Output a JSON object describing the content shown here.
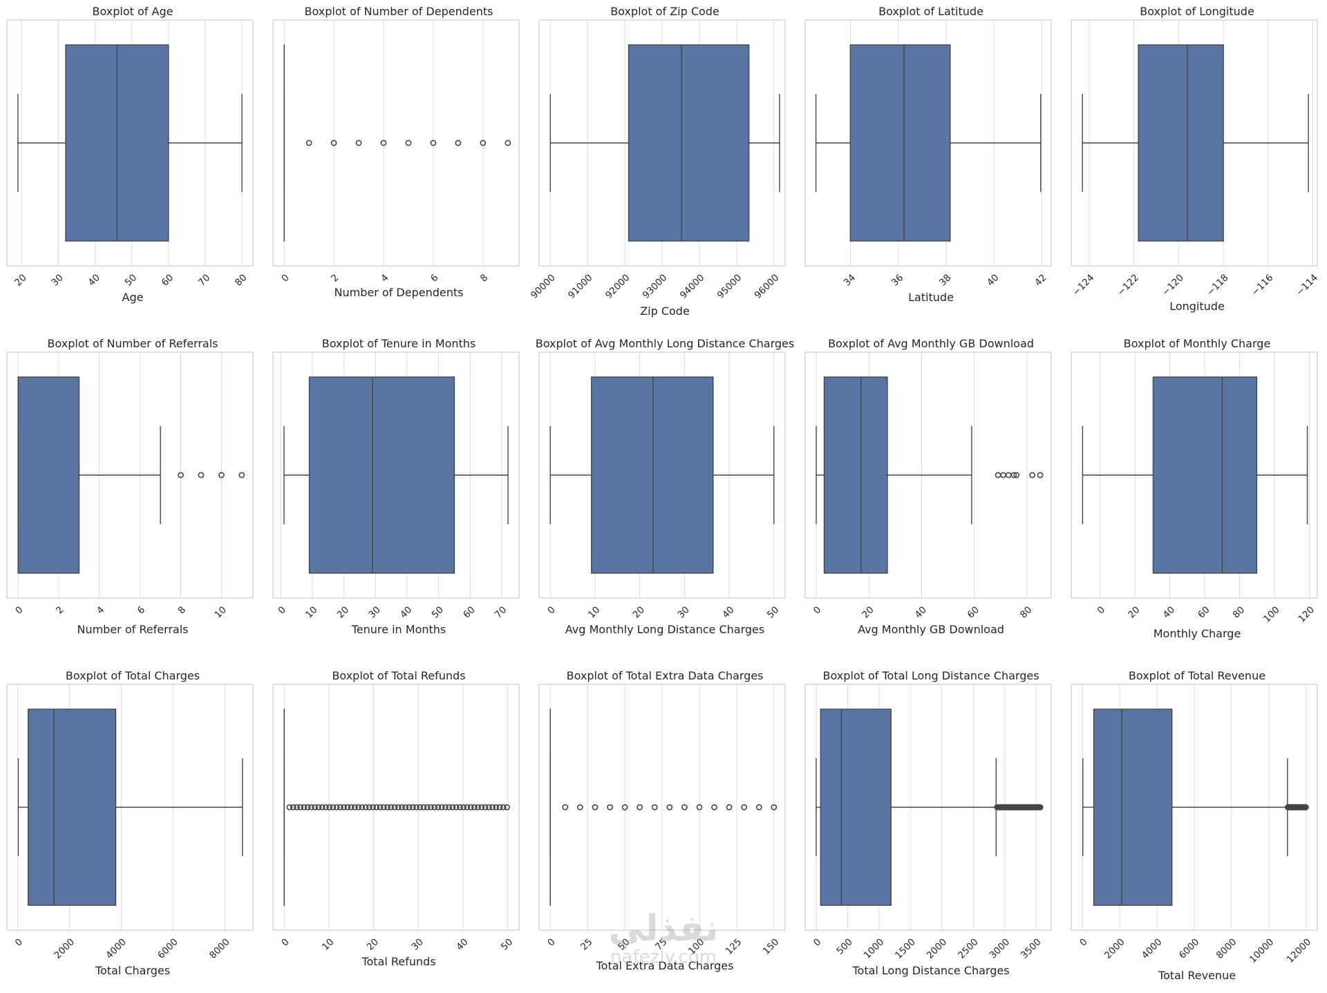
{
  "colors": {
    "box": "#5875a4",
    "line": "#444444",
    "grid": "#d9d9d9",
    "frame": "#cccccc",
    "text": "#262626"
  },
  "watermark": {
    "main": "نفذلي",
    "sub": "nafezly.com"
  },
  "chart_data": [
    {
      "type": "boxplot",
      "title": "Boxplot of Age",
      "xlabel": "Age",
      "xlim": [
        16,
        83
      ],
      "ticks": [
        20,
        30,
        40,
        50,
        60,
        70,
        80
      ],
      "tick_labels": [
        "20",
        "30",
        "40",
        "50",
        "60",
        "70",
        "80"
      ],
      "rotate": true,
      "whisker_low": 19,
      "q1": 32,
      "median": 46,
      "q3": 60,
      "whisker_high": 80,
      "outliers": []
    },
    {
      "type": "boxplot",
      "title": "Boxplot of Number of Dependents",
      "xlabel": "Number of Dependents",
      "xlim": [
        -0.45,
        9.45
      ],
      "ticks": [
        0,
        2,
        4,
        6,
        8
      ],
      "tick_labels": [
        "0",
        "2",
        "4",
        "6",
        "8"
      ],
      "rotate": true,
      "whisker_low": 0,
      "q1": 0,
      "median": 0,
      "q3": 0,
      "whisker_high": 0,
      "outliers": [
        1,
        2,
        3,
        4,
        5,
        6,
        7,
        8,
        9
      ]
    },
    {
      "type": "boxplot",
      "title": "Boxplot of Zip Code",
      "xlabel": "Zip Code",
      "xlim": [
        89700,
        96300
      ],
      "ticks": [
        90000,
        91000,
        92000,
        93000,
        94000,
        95000,
        96000
      ],
      "tick_labels": [
        "90000",
        "91000",
        "92000",
        "93000",
        "94000",
        "95000",
        "96000"
      ],
      "rotate": true,
      "whisker_low": 90001,
      "q1": 92101,
      "median": 93518,
      "q3": 95329,
      "whisker_high": 96150,
      "outliers": []
    },
    {
      "type": "boxplot",
      "title": "Boxplot of Latitude",
      "xlabel": "Latitude",
      "xlim": [
        32.1,
        42.4
      ],
      "ticks": [
        34,
        36,
        38,
        40,
        42
      ],
      "tick_labels": [
        "34",
        "36",
        "38",
        "40",
        "42"
      ],
      "rotate": true,
      "whisker_low": 32.55,
      "q1": 33.99,
      "median": 36.24,
      "q3": 38.17,
      "whisker_high": 41.96,
      "outliers": []
    },
    {
      "type": "boxplot",
      "title": "Boxplot of Longitude",
      "xlabel": "Longitude",
      "xlim": [
        -124.8,
        -113.8
      ],
      "ticks": [
        -124,
        -122,
        -120,
        -118,
        -116,
        -114
      ],
      "tick_labels": [
        "−124",
        "−122",
        "−120",
        "−118",
        "−116",
        "−114"
      ],
      "rotate": true,
      "whisker_low": -124.3,
      "q1": -121.8,
      "median": -119.6,
      "q3": -118.0,
      "whisker_high": -114.2,
      "outliers": []
    },
    {
      "type": "boxplot",
      "title": "Boxplot of Number of Referrals",
      "xlabel": "Number of Referrals",
      "xlim": [
        -0.55,
        11.55
      ],
      "ticks": [
        0,
        2,
        4,
        6,
        8,
        10
      ],
      "tick_labels": [
        "0",
        "2",
        "4",
        "6",
        "8",
        "10"
      ],
      "rotate": true,
      "whisker_low": 0,
      "q1": 0,
      "median": 0,
      "q3": 3,
      "whisker_high": 7,
      "outliers": [
        8,
        9,
        10,
        11
      ]
    },
    {
      "type": "boxplot",
      "title": "Boxplot of Tenure in Months",
      "xlabel": "Tenure in Months",
      "xlim": [
        -2.5,
        75.5
      ],
      "ticks": [
        0,
        10,
        20,
        30,
        40,
        50,
        60,
        70
      ],
      "tick_labels": [
        "0",
        "10",
        "20",
        "30",
        "40",
        "50",
        "60",
        "70"
      ],
      "rotate": true,
      "whisker_low": 1,
      "q1": 9,
      "median": 29,
      "q3": 55,
      "whisker_high": 72,
      "outliers": []
    },
    {
      "type": "boxplot",
      "title": "Boxplot of Avg Monthly Long Distance Charges",
      "xlabel": "Avg Monthly Long Distance Charges",
      "xlim": [
        -2.5,
        52.5
      ],
      "ticks": [
        0,
        10,
        20,
        30,
        40,
        50
      ],
      "tick_labels": [
        "0",
        "10",
        "20",
        "30",
        "40",
        "50"
      ],
      "rotate": true,
      "whisker_low": 0,
      "q1": 9.2,
      "median": 23.0,
      "q3": 36.4,
      "whisker_high": 49.99,
      "outliers": []
    },
    {
      "type": "boxplot",
      "title": "Boxplot of Avg Monthly GB Download",
      "xlabel": "Avg Monthly GB Download",
      "xlim": [
        -4.2,
        89.2
      ],
      "ticks": [
        0,
        20,
        40,
        60,
        80
      ],
      "tick_labels": [
        "0",
        "20",
        "40",
        "60",
        "80"
      ],
      "rotate": true,
      "whisker_low": 0,
      "q1": 3,
      "median": 17,
      "q3": 27,
      "whisker_high": 59,
      "outliers": [
        69,
        71,
        73,
        75,
        76,
        82,
        85
      ]
    },
    {
      "type": "boxplot",
      "title": "Boxplot of Monthly Charge",
      "xlabel": "Monthly Charge",
      "xlim": [
        -16.5,
        124.5
      ],
      "ticks": [
        0,
        20,
        40,
        60,
        80,
        100,
        120
      ],
      "tick_labels": [
        "0",
        "20",
        "40",
        "60",
        "80",
        "100",
        "120"
      ],
      "rotate": true,
      "whisker_low": -10,
      "q1": 30.4,
      "median": 70.0,
      "q3": 89.8,
      "whisker_high": 118.75,
      "outliers": []
    },
    {
      "type": "boxplot",
      "title": "Boxplot of Total Charges",
      "xlabel": "Total Charges",
      "xlim": [
        -420,
        9090
      ],
      "ticks": [
        0,
        2000,
        4000,
        6000,
        8000
      ],
      "tick_labels": [
        "0",
        "2000",
        "4000",
        "6000",
        "8000"
      ],
      "rotate": true,
      "whisker_low": 18.8,
      "q1": 400,
      "median": 1395,
      "q3": 3787,
      "whisker_high": 8685,
      "outliers": []
    },
    {
      "type": "boxplot",
      "title": "Boxplot of Total Refunds",
      "xlabel": "Total Refunds",
      "xlim": [
        -2.5,
        52.5
      ],
      "ticks": [
        0,
        10,
        20,
        30,
        40,
        50
      ],
      "tick_labels": [
        "0",
        "10",
        "20",
        "30",
        "40",
        "50"
      ],
      "rotate": true,
      "whisker_low": 0,
      "q1": 0,
      "median": 0,
      "q3": 0,
      "whisker_high": 0,
      "outliers_range": [
        1.2,
        49.8
      ],
      "outliers": []
    },
    {
      "type": "boxplot",
      "title": "Boxplot of Total Extra Data Charges",
      "xlabel": "Total Extra Data Charges",
      "xlim": [
        -7.5,
        157.5
      ],
      "ticks": [
        0,
        25,
        50,
        75,
        100,
        125,
        150
      ],
      "tick_labels": [
        "0",
        "25",
        "50",
        "75",
        "100",
        "125",
        "150"
      ],
      "rotate": true,
      "whisker_low": 0,
      "q1": 0,
      "median": 0,
      "q3": 0,
      "whisker_high": 0,
      "outliers": [
        10,
        20,
        30,
        40,
        50,
        60,
        70,
        80,
        90,
        100,
        110,
        120,
        130,
        140,
        150
      ]
    },
    {
      "type": "boxplot",
      "title": "Boxplot of Total Long Distance Charges",
      "xlabel": "Total Long Distance Charges",
      "xlim": [
        -175,
        3740
      ],
      "ticks": [
        0,
        500,
        1000,
        1500,
        2000,
        2500,
        3000,
        3500
      ],
      "tick_labels": [
        "0",
        "500",
        "1000",
        "1500",
        "2000",
        "2500",
        "3000",
        "3500"
      ],
      "rotate": true,
      "whisker_low": 0,
      "q1": 70,
      "median": 401,
      "q3": 1191,
      "whisker_high": 2863,
      "outliers_range": [
        2880,
        3565
      ],
      "outliers": []
    },
    {
      "type": "boxplot",
      "title": "Boxplot of Total Revenue",
      "xlabel": "Total Revenue",
      "xlim": [
        -600,
        12600
      ],
      "ticks": [
        0,
        2000,
        4000,
        6000,
        8000,
        10000,
        12000
      ],
      "tick_labels": [
        "0",
        "2000",
        "4000",
        "6000",
        "8000",
        "10000",
        "12000"
      ],
      "rotate": true,
      "whisker_low": 21.4,
      "q1": 605,
      "median": 2108,
      "q3": 4801,
      "whisker_high": 11000,
      "outliers_range": [
        11020,
        11980
      ],
      "outliers": []
    }
  ]
}
